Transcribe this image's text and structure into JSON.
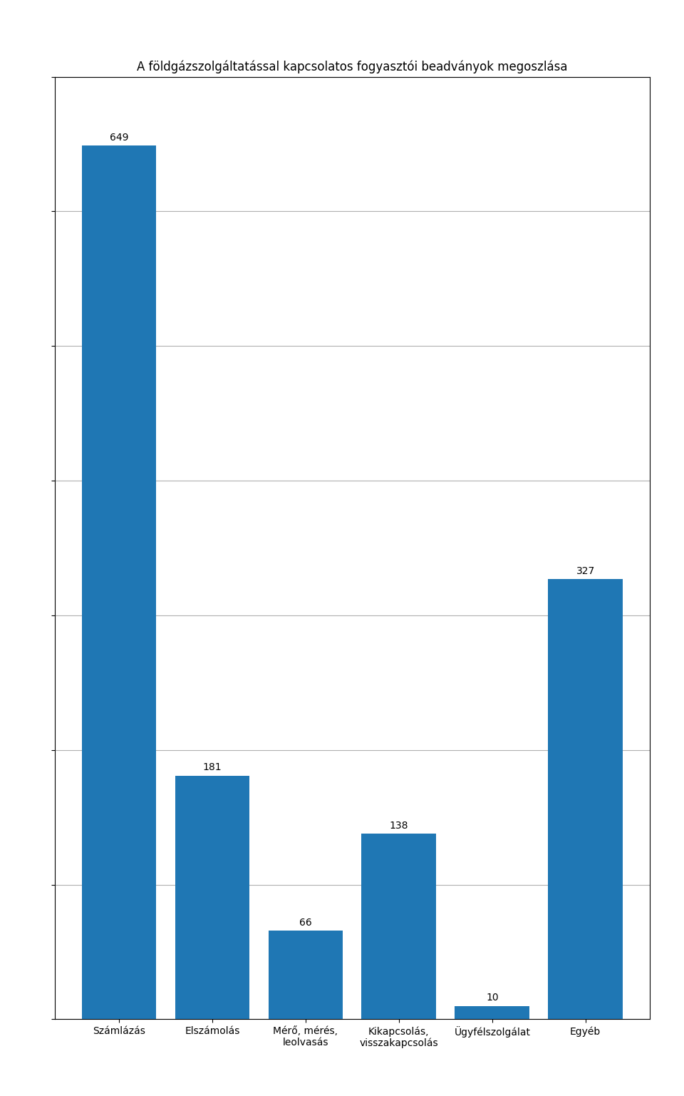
{
  "chart_data": {
    "type": "bar",
    "title": "A földgázszolgáltatással kapcsolatos fogyasztói beadványok megoszlása",
    "categories": [
      "Számlázás",
      "Elszámolás",
      "Mérő, mérés,\nleolvasás",
      "Kikapcsolás,\nvisszakapcsolás",
      "Ügyfélszolgálat",
      "Egyéb"
    ],
    "values": [
      649,
      181,
      66,
      138,
      10,
      327
    ],
    "ylim": [
      0,
      700
    ],
    "yticks": [
      0,
      100,
      200,
      300,
      400,
      500,
      600,
      700
    ],
    "grid": true,
    "data_labels": true,
    "tick_labels": "x"
  }
}
